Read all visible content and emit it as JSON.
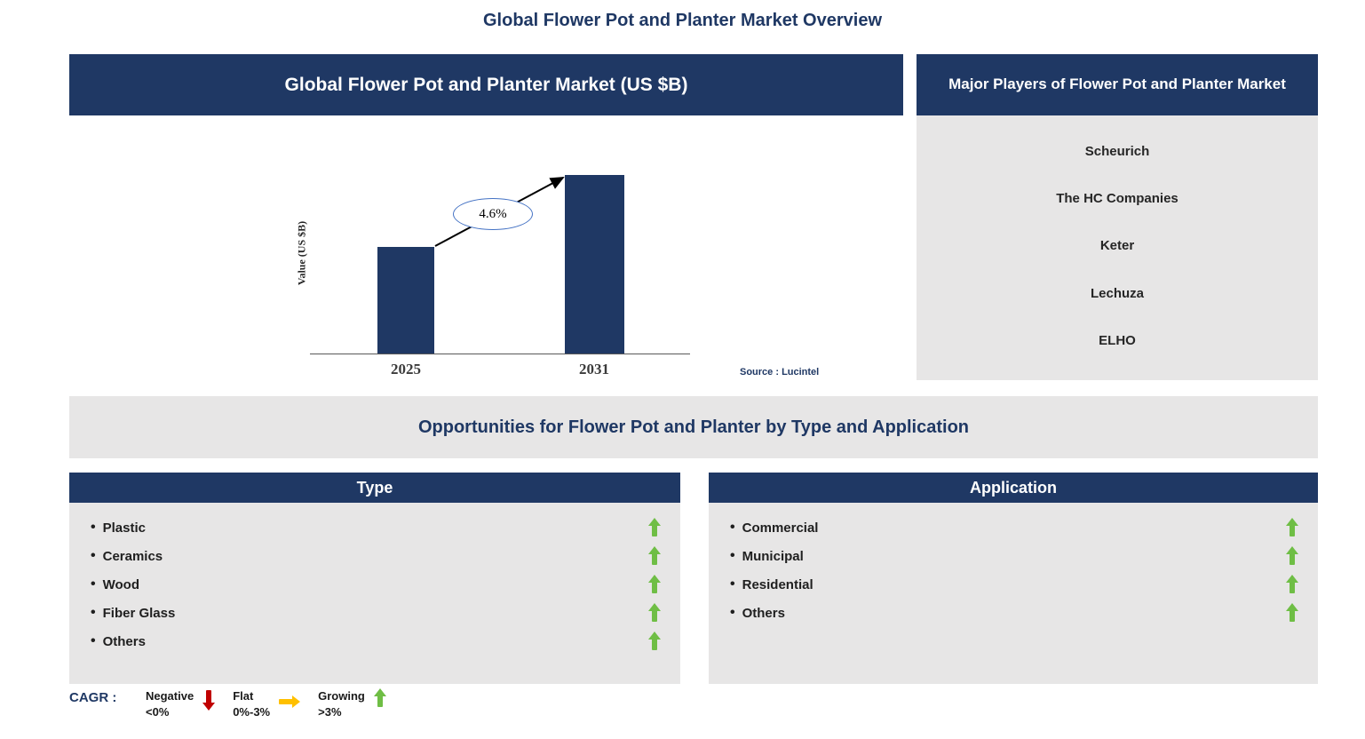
{
  "page_title": "Global Flower Pot and Planter Market Overview",
  "market_chart": {
    "header": "Global Flower Pot and Planter Market (US $B)",
    "y_axis_label": "Value (US $B)",
    "cagr_label": "4.6%",
    "source": "Source : Lucintel",
    "categories": [
      "2025",
      "2031"
    ]
  },
  "chart_data": {
    "type": "bar",
    "title": "Global Flower Pot and Planter Market (US $B)",
    "categories": [
      "2025",
      "2031"
    ],
    "values": [
      120,
      201
    ],
    "values_unit": "relative bar height (no numeric axis scale shown)",
    "xlabel": "",
    "ylabel": "Value (US $B)",
    "ylim": [
      0,
      240
    ],
    "grid": false,
    "legend": false,
    "annotations": [
      "4.6% CAGR arrow from 2025 bar to 2031 bar"
    ],
    "bar_color": "#1F3864"
  },
  "major_players": {
    "header": "Major Players of Flower Pot and Planter Market",
    "companies": [
      "Scheurich",
      "The HC Companies",
      "Keter",
      "Lechuza",
      "ELHO"
    ]
  },
  "opportunities_title": "Opportunities for Flower Pot and Planter by Type and Application",
  "type_panel": {
    "header": "Type",
    "items": [
      {
        "label": "Plastic",
        "trend": "growing"
      },
      {
        "label": "Ceramics",
        "trend": "growing"
      },
      {
        "label": "Wood",
        "trend": "growing"
      },
      {
        "label": "Fiber Glass",
        "trend": "growing"
      },
      {
        "label": "Others",
        "trend": "growing"
      }
    ]
  },
  "application_panel": {
    "header": "Application",
    "items": [
      {
        "label": "Commercial",
        "trend": "growing"
      },
      {
        "label": "Municipal",
        "trend": "growing"
      },
      {
        "label": "Residential",
        "trend": "growing"
      },
      {
        "label": "Others",
        "trend": "growing"
      }
    ]
  },
  "cagr_legend": {
    "label": "CAGR :",
    "entries": [
      {
        "label": "Negative",
        "range": "<0%",
        "direction": "down",
        "color": "#C00000"
      },
      {
        "label": "Flat",
        "range": "0%-3%",
        "direction": "right",
        "color": "#FFC000"
      },
      {
        "label": "Growing",
        "range": ">3%",
        "direction": "up",
        "color": "#6FBE45"
      }
    ]
  },
  "colors": {
    "header_navy": "#1F3864",
    "panel_gray": "#E7E6E6",
    "title_blue": "#1F3864",
    "bar_navy": "#1F3864",
    "growing_green": "#6FBE45",
    "negative_red": "#C00000",
    "flat_amber": "#FFC000"
  }
}
